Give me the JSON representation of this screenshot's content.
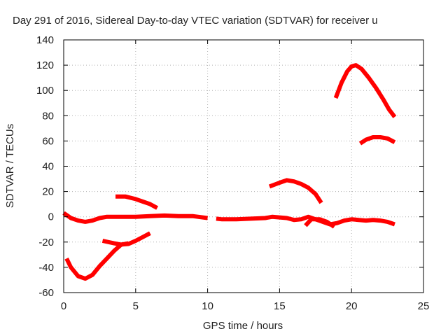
{
  "chart_data": {
    "type": "line",
    "title": "Day 291 of 2016, Sidereal Day-to-day VTEC variation (SDTVAR) for receiver u",
    "xlabel": "GPS time / hours",
    "ylabel": "SDTVAR / TECUs",
    "xlim": [
      0,
      25
    ],
    "ylim": [
      -60,
      140
    ],
    "xticks": [
      "0",
      "5",
      "10",
      "15",
      "20",
      "25"
    ],
    "yticks": [
      "-60",
      "-40",
      "-20",
      "0",
      "20",
      "40",
      "60",
      "80",
      "100",
      "120",
      "140"
    ],
    "grid": true,
    "legend": "none",
    "color": "#ff0000",
    "series": [
      {
        "x": [
          0.0,
          0.5,
          1.0,
          1.5,
          2.0,
          2.5,
          3.0,
          3.5,
          4.0,
          5.0,
          6.0,
          7.0,
          8.0,
          9.0,
          10.0
        ],
        "y": [
          3,
          -1,
          -3,
          -4,
          -3,
          -1,
          0,
          0,
          0,
          0,
          0.5,
          1,
          0.5,
          0.5,
          -1
        ]
      },
      {
        "x": [
          0.2,
          0.5,
          1.0,
          1.5,
          2.0,
          2.5,
          3.0,
          3.5,
          4.0,
          4.5
        ],
        "y": [
          -33,
          -40,
          -47,
          -49,
          -46,
          -39,
          -33,
          -27,
          -22,
          -21
        ]
      },
      {
        "x": [
          2.7,
          3.5,
          4.0,
          4.5,
          5.0,
          5.5,
          6.0
        ],
        "y": [
          -19,
          -21,
          -22,
          -21.5,
          -19,
          -16,
          -13
        ]
      },
      {
        "x": [
          3.6,
          4.3,
          5.0,
          5.5,
          6.0,
          6.5
        ],
        "y": [
          16,
          16,
          14,
          12,
          10,
          7
        ]
      },
      {
        "x": [
          10.6,
          11.0,
          12.0,
          13.0,
          14.0,
          14.5,
          15.0,
          15.5,
          16.0,
          16.5,
          17.0,
          17.5,
          18.0,
          18.5,
          19.0,
          19.5,
          20.0,
          20.5,
          21.0,
          21.5,
          22.0,
          22.5,
          23.0
        ],
        "y": [
          -1.5,
          -2,
          -2,
          -1.5,
          -1,
          0,
          -0.5,
          -1,
          -2.5,
          -2,
          0,
          -2,
          -4,
          -6,
          -5,
          -3,
          -2,
          -2.5,
          -3,
          -2.5,
          -3,
          -4,
          -6
        ]
      },
      {
        "x": [
          16.8,
          17.2,
          17.8,
          18.3,
          18.8
        ],
        "y": [
          -7,
          -2,
          -2,
          -4,
          -8
        ]
      },
      {
        "x": [
          14.3,
          15.0,
          15.5,
          16.0,
          16.5,
          17.0,
          17.5,
          17.9
        ],
        "y": [
          24,
          27,
          29,
          28,
          26,
          23,
          18,
          11
        ]
      },
      {
        "x": [
          18.9,
          19.3,
          19.7,
          20.0,
          20.3,
          20.7,
          21.2,
          21.7,
          22.2,
          22.6,
          23.0
        ],
        "y": [
          94,
          106,
          115,
          119,
          120,
          117,
          110,
          102,
          93,
          85,
          79
        ]
      },
      {
        "x": [
          20.6,
          21.0,
          21.5,
          22.0,
          22.5,
          23.0
        ],
        "y": [
          58,
          61,
          63,
          63,
          62,
          59
        ]
      }
    ]
  }
}
